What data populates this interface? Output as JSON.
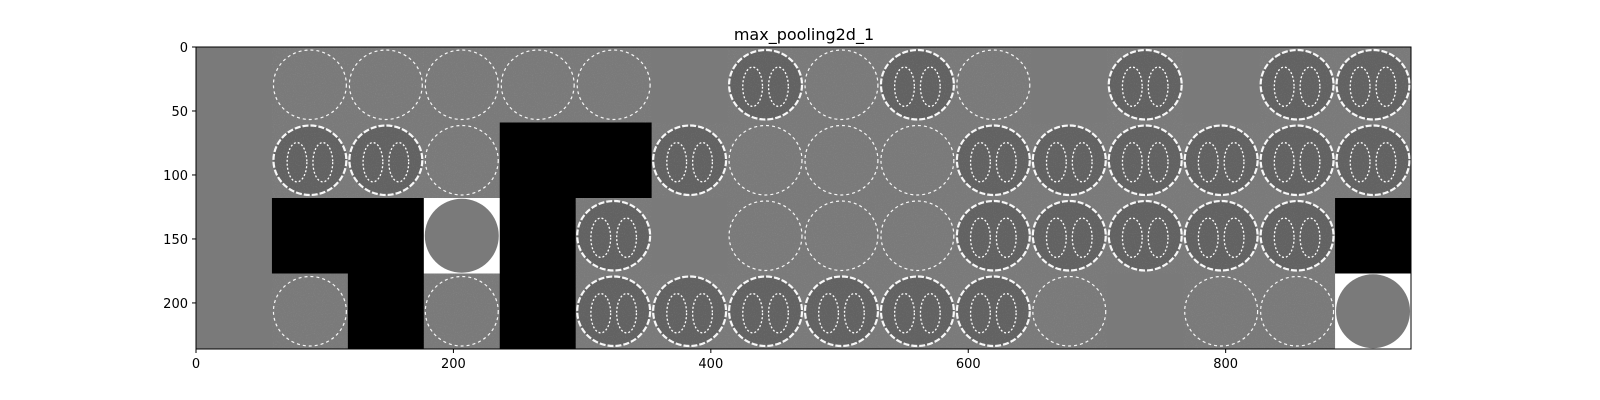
{
  "chart_data": {
    "type": "heatmap",
    "title": "max_pooling2d_1",
    "xlabel": "",
    "ylabel": "",
    "grid": false,
    "x_ticks": [
      0,
      200,
      400,
      600,
      800
    ],
    "y_ticks": [
      0,
      50,
      100,
      150,
      200
    ],
    "xlim": [
      0,
      944
    ],
    "ylim": [
      236,
      0
    ],
    "tile_size": 59,
    "rows": 4,
    "cols": 16,
    "tile_kinds": [
      [
        "flat",
        "ring",
        "ring",
        "ring",
        "ring",
        "ring",
        "flat",
        "lungs",
        "ring",
        "lungs",
        "ring",
        "flat",
        "lungs",
        "flat",
        "lungs",
        "lungs"
      ],
      [
        "flat",
        "lungs",
        "lungs",
        "ring",
        "black",
        "black",
        "lungs",
        "ring",
        "ring",
        "ring",
        "lungs",
        "lungs",
        "lungs",
        "lungs",
        "lungs",
        "lungs"
      ],
      [
        "flat",
        "black",
        "black",
        "disk",
        "black",
        "lungs",
        "flat",
        "ring",
        "ring",
        "ring",
        "lungs",
        "lungs",
        "lungs",
        "lungs",
        "lungs",
        "black"
      ],
      [
        "flat",
        "ring",
        "black",
        "ring",
        "black",
        "lungs",
        "lungs",
        "lungs",
        "lungs",
        "lungs",
        "lungs",
        "ring",
        "flat",
        "ring",
        "ring",
        "disk"
      ]
    ],
    "colors": {
      "background_gray": "#7a7a7a",
      "dark_gray": "#616161",
      "black": "#000000",
      "white": "#ffffff"
    }
  }
}
